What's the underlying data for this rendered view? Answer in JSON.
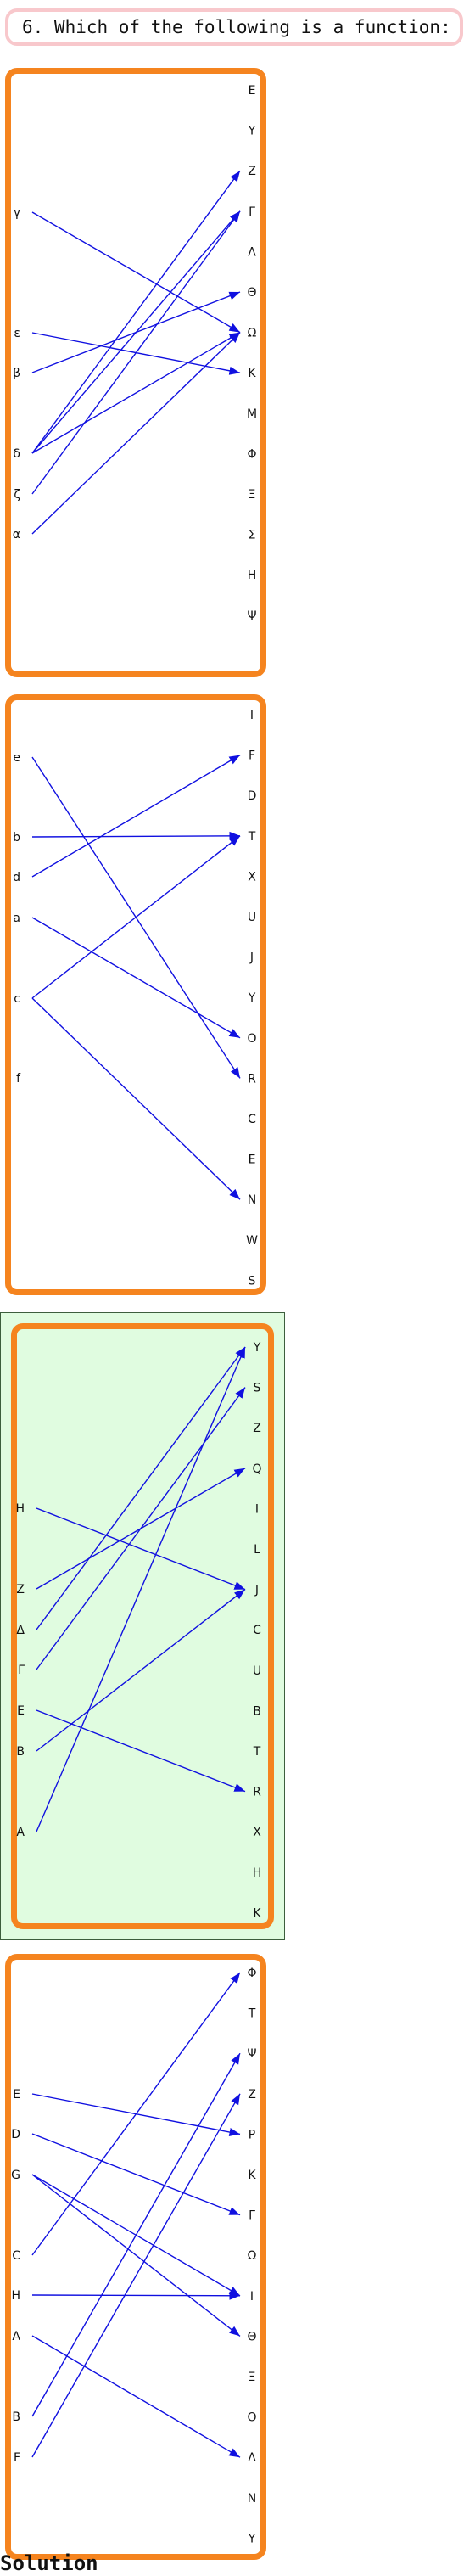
{
  "question": "6. Which of the following is a function:",
  "solution_label": "Solution",
  "colors": {
    "box_border": "#f5841f",
    "arrow": "#1010e0",
    "highlight": "#e0fce0"
  },
  "options": [
    {
      "left": [
        "γ",
        "ε",
        "β",
        "δ",
        "ζ",
        "α"
      ],
      "right": [
        "E",
        "Y",
        "Z",
        "Γ",
        "Λ",
        "Θ",
        "Ω",
        "K",
        "M",
        "Φ",
        "Ξ",
        "Σ",
        "H",
        "Ψ"
      ],
      "arrows": [
        [
          "γ",
          "Ω"
        ],
        [
          "ε",
          "K"
        ],
        [
          "β",
          "Θ"
        ],
        [
          "δ",
          "Z"
        ],
        [
          "δ",
          "Γ"
        ],
        [
          "δ",
          "Ω"
        ],
        [
          "ζ",
          "Γ"
        ],
        [
          "α",
          "Ω"
        ]
      ],
      "highlighted": false
    },
    {
      "left": [
        "e",
        "b",
        "d",
        "a",
        "c",
        "f"
      ],
      "right": [
        "I",
        "F",
        "D",
        "T",
        "X",
        "U",
        "J",
        "Y",
        "O",
        "R",
        "C",
        "E",
        "N",
        "W",
        "S"
      ],
      "arrows": [
        [
          "e",
          "R"
        ],
        [
          "b",
          "T"
        ],
        [
          "d",
          "F"
        ],
        [
          "a",
          "O"
        ],
        [
          "c",
          "T"
        ],
        [
          "c",
          "N"
        ]
      ],
      "highlighted": false
    },
    {
      "left": [
        "H",
        "Z",
        "Δ",
        "Γ",
        "E",
        "B",
        "A"
      ],
      "right": [
        "Y",
        "S",
        "Z",
        "Q",
        "I",
        "L",
        "J",
        "C",
        "U",
        "B",
        "T",
        "R",
        "X",
        "H",
        "K"
      ],
      "arrows": [
        [
          "H",
          "J"
        ],
        [
          "Z",
          "Q"
        ],
        [
          "Δ",
          "Y"
        ],
        [
          "Γ",
          "S"
        ],
        [
          "E",
          "R"
        ],
        [
          "B",
          "J"
        ],
        [
          "A",
          "Y"
        ]
      ],
      "highlighted": true
    },
    {
      "left": [
        "E",
        "D",
        "G",
        "C",
        "H",
        "A",
        "B",
        "F"
      ],
      "right": [
        "Φ",
        "T",
        "Ψ",
        "Z",
        "P",
        "K",
        "Γ",
        "Ω",
        "I",
        "Θ",
        "Ξ",
        "O",
        "Λ",
        "N",
        "Y"
      ],
      "arrows": [
        [
          "E",
          "P"
        ],
        [
          "D",
          "Γ"
        ],
        [
          "G",
          "I"
        ],
        [
          "G",
          "Θ"
        ],
        [
          "C",
          "Φ"
        ],
        [
          "H",
          "I"
        ],
        [
          "A",
          "Λ"
        ],
        [
          "B",
          "Ψ"
        ],
        [
          "F",
          "Z"
        ]
      ],
      "highlighted": false
    }
  ]
}
